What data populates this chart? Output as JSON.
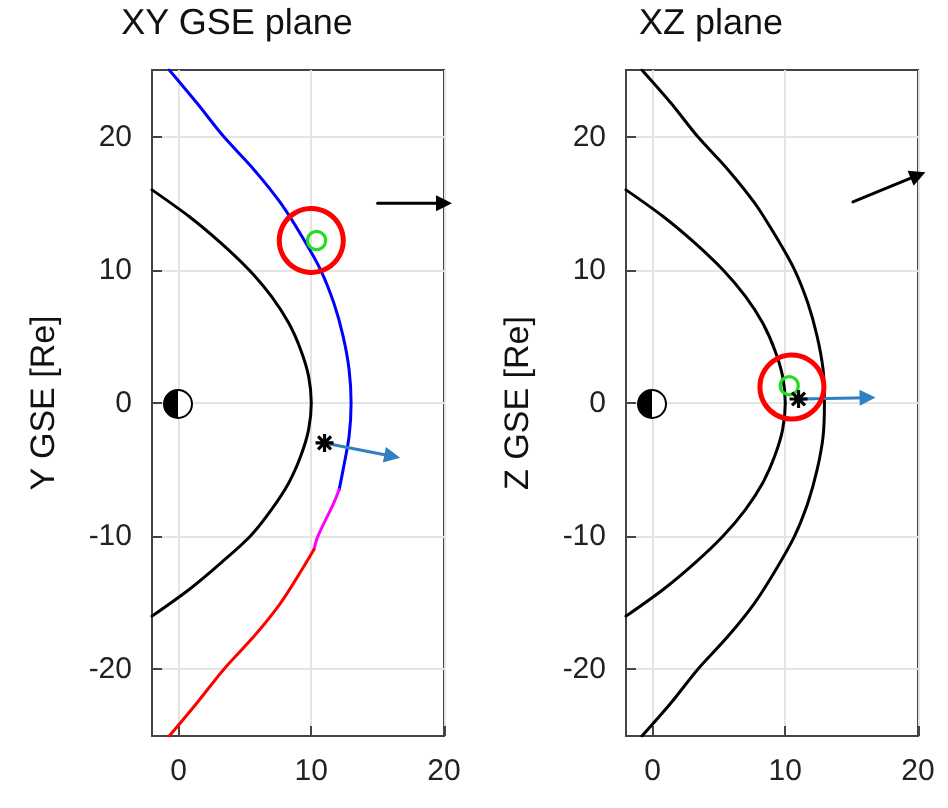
{
  "chart_data": [
    {
      "type": "line",
      "title": "XY GSE plane",
      "ylabel": "Y GSE [Re]",
      "xlim": [
        -2,
        20
      ],
      "ylim": [
        -25,
        25
      ],
      "xticks": [
        0,
        10,
        20
      ],
      "yticks": [
        -20,
        -10,
        0,
        10,
        20
      ],
      "grid": true,
      "series": [
        {
          "color": "#000000",
          "x": [
            -2,
            0.8,
            3.2,
            5.3,
            7,
            8.3,
            9.2,
            9.8,
            10,
            9.8,
            9.2,
            8.3,
            7,
            5.4,
            3.2,
            0.8,
            -2
          ],
          "values": [
            16,
            14,
            12,
            10,
            8,
            6,
            4,
            2,
            0,
            -2,
            -4,
            -6,
            -8,
            -10,
            -12,
            -14,
            -16
          ]
        },
        {
          "color": "#0000ff",
          "x": [
            -0.7,
            1.4,
            3.4,
            5.7,
            7.7,
            9.3,
            10.7,
            11.7,
            12.4,
            12.85,
            13,
            12.85,
            12.4,
            12.1
          ],
          "values": [
            25,
            22.5,
            20,
            17.5,
            15,
            12.5,
            10,
            7.5,
            5,
            2.5,
            0,
            -2.5,
            -5,
            -6.5
          ]
        },
        {
          "color": "#ff00ff",
          "x": [
            12.1,
            11.7,
            10.5,
            10.2
          ],
          "values": [
            -6.5,
            -7.5,
            -10,
            -11
          ]
        },
        {
          "color": "#ff0000",
          "x": [
            10.2,
            9.3,
            7.7,
            5.7,
            3.4,
            1.4,
            -0.7
          ],
          "values": [
            -11,
            -12.5,
            -15,
            -17.5,
            -20,
            -22.5,
            -25
          ]
        },
        {
          "type": "line",
          "color": "#2f7fc1",
          "marker": "triangle",
          "x": [
            11,
            16.1
          ],
          "values": [
            -3,
            -4
          ]
        },
        {
          "type": "line",
          "color": "#000000",
          "marker": "triangle",
          "x": [
            15,
            20
          ],
          "values": [
            15,
            15
          ]
        },
        {
          "type": "scatter",
          "color": "#22dd22",
          "marker": "circle",
          "x": [
            10.4
          ],
          "values": [
            12.2
          ]
        },
        {
          "type": "bubble",
          "color": "#ff0000",
          "marker": "circle",
          "x": [
            10
          ],
          "values": [
            12.2
          ],
          "sizes": [
            1
          ]
        },
        {
          "type": "scatter",
          "color": "#000000",
          "marker": "cross",
          "x": [
            11
          ],
          "values": [
            -3
          ]
        }
      ]
    },
    {
      "type": "line",
      "title": "XZ plane",
      "ylabel": "Z GSE [Re]",
      "xlim": [
        -2,
        20
      ],
      "ylim": [
        -25,
        25
      ],
      "xticks": [
        0,
        10,
        20
      ],
      "yticks": [
        -20,
        -10,
        0,
        10,
        20
      ],
      "grid": true,
      "series": [
        {
          "color": "#000000",
          "x": [
            -2,
            0.8,
            3.2,
            5.3,
            7,
            8.3,
            9.2,
            9.8,
            10,
            9.8,
            9.2,
            8.3,
            7,
            5.3,
            3.2,
            0.8,
            -2
          ],
          "values": [
            16,
            14,
            12,
            10,
            8,
            6,
            4,
            2,
            0,
            -2,
            -4,
            -6,
            -8,
            -10,
            -12,
            -14,
            -16
          ]
        },
        {
          "color": "#000000",
          "x": [
            -0.8,
            1.4,
            3.4,
            5.7,
            7.7,
            9.3,
            10.7,
            11.7,
            12.4,
            12.85,
            12.95,
            12.85,
            12.4,
            11.7,
            10.7,
            9.3,
            7.7,
            5.7,
            3.4,
            1.4,
            -0.8
          ],
          "values": [
            25,
            22.5,
            20,
            17.5,
            15,
            12.5,
            10,
            7.5,
            5,
            2.5,
            0,
            -2.5,
            -5,
            -7.5,
            -10,
            -12.5,
            -15,
            -17.5,
            -20,
            -22.5,
            -25
          ]
        },
        {
          "type": "line",
          "color": "#2f7fc1",
          "marker": "triangle",
          "x": [
            11,
            16.2
          ],
          "values": [
            0.3,
            0.4
          ]
        },
        {
          "type": "line",
          "color": "#000000",
          "marker": "triangle",
          "x": [
            15.1,
            20
          ],
          "values": [
            15.1,
            17.1
          ]
        },
        {
          "type": "scatter",
          "color": "#22dd22",
          "marker": "circle",
          "x": [
            10.3
          ],
          "values": [
            1.3
          ]
        },
        {
          "type": "bubble",
          "color": "#ff0000",
          "marker": "circle",
          "x": [
            10.5
          ],
          "values": [
            1.2
          ],
          "sizes": [
            1
          ]
        },
        {
          "type": "scatter",
          "color": "#000000",
          "marker": "cross",
          "x": [
            11
          ],
          "values": [
            0.3
          ]
        }
      ]
    }
  ]
}
